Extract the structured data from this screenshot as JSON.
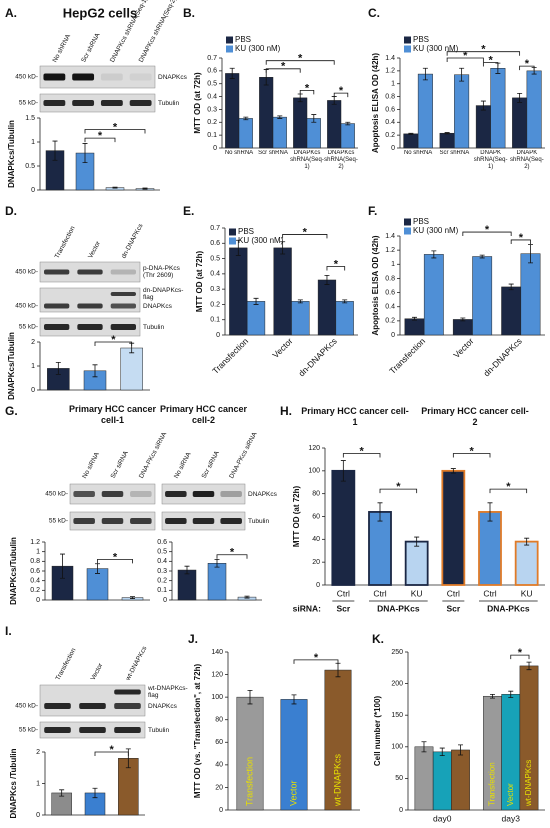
{
  "blots": [
    {
      "label": "A.",
      "title": "HepG2 cells",
      "lanes": [
        "No shRNA",
        "Scr shRNA",
        "DNAPKcs shRNA(Seq-1)",
        "DNAPKcs shRNA(Seq-2)"
      ],
      "rows": [
        {
          "marker": "450 kD-",
          "names": [
            "DNAPKcs"
          ]
        },
        {
          "marker": "55 kD-",
          "names": [
            "Tubulin"
          ]
        }
      ]
    },
    {
      "label": "D.",
      "lanes": [
        "Transfection",
        "Vector",
        "dn-DNAPKcs"
      ],
      "rows": [
        {
          "marker": "450 kD-",
          "names": [
            "p-DNA-PKcs (Thr 2609)"
          ]
        },
        {
          "marker": "450 kD-",
          "names": [
            "dn-DNAPKcs-flag",
            "DNAPKcs"
          ]
        },
        {
          "marker": "55 kD-",
          "names": [
            "Tubulin"
          ]
        }
      ]
    },
    {
      "label": "G.",
      "headings": [
        "Primary HCC cancer cell-1",
        "Primary HCC cancer cell-2"
      ],
      "lanes": [
        "No siRNA",
        "Scr siRNA",
        "DNA-PKcs siRNA",
        "No siRNA",
        "Scr siRNA",
        "DNA-PKcs siRNA"
      ],
      "rows": [
        {
          "marker": "450 kD-",
          "names": [
            "DNAPKcs"
          ]
        },
        {
          "marker": "55 kD-",
          "names": [
            "Tubulin"
          ]
        }
      ]
    },
    {
      "label": "I.",
      "lanes": [
        "Transfection",
        "Vector",
        "wt-DNAPKcs"
      ],
      "rows": [
        {
          "marker": "450 kD-",
          "names": [
            "wt-DNAPKcs-flag",
            "DNAPKcs"
          ]
        },
        {
          "marker": "55 kD-",
          "names": [
            "Tubulin"
          ]
        }
      ]
    }
  ],
  "chart_data": [
    {
      "type": "bar",
      "ylabel": "DNAPKcs/Tubulin",
      "values": [
        0.82,
        0.77,
        0.05,
        0.03
      ],
      "errors": [
        0.2,
        0.2,
        0.01,
        0.01
      ],
      "colors": [
        "#1b2744",
        "#4f8fd6",
        "#b8d4f0",
        "#b8d4f0"
      ],
      "ylim": [
        0,
        1.5
      ],
      "yticks": [
        0,
        0.5,
        1,
        1.5
      ],
      "annotations": [
        "*",
        "*"
      ]
    },
    {
      "type": "bar",
      "label": "B.",
      "ylabel": "MTT OD (at 72h)",
      "categories": [
        "No shRNA",
        "Scr shRNA",
        "DNAPKcs shRNA(Seq-1)",
        "DNAPKcs shRNA(Seq-2)"
      ],
      "series": [
        {
          "name": "PBS",
          "color": "#1b2744",
          "values": [
            0.58,
            0.55,
            0.39,
            0.37
          ],
          "errors": [
            0.04,
            0.06,
            0.03,
            0.03
          ]
        },
        {
          "name": "KU (300 nM)",
          "color": "#4f8fd6",
          "values": [
            0.23,
            0.24,
            0.23,
            0.19
          ],
          "errors": [
            0.01,
            0.01,
            0.03,
            0.01
          ]
        }
      ],
      "ylim": [
        0,
        0.7
      ],
      "yticks": [
        0,
        0.1,
        0.2,
        0.3,
        0.4,
        0.5,
        0.6,
        0.7
      ],
      "annotations": [
        "*",
        "*",
        "*",
        "*"
      ]
    },
    {
      "type": "bar",
      "label": "C.",
      "ylabel": "Apoptosis ELISA OD (42h)",
      "categories": [
        "No shRNA",
        "Scr shRNA",
        "DNAPK shRNA(Seq-1)",
        "DNAPK shRNA(Seq-2)"
      ],
      "series": [
        {
          "name": "PBS",
          "color": "#1b2744",
          "values": [
            0.22,
            0.23,
            0.66,
            0.78
          ],
          "errors": [
            0.01,
            0.01,
            0.07,
            0.07
          ]
        },
        {
          "name": "KU (300 nM)",
          "color": "#4f8fd6",
          "values": [
            1.15,
            1.14,
            1.24,
            1.2
          ],
          "errors": [
            0.09,
            0.1,
            0.08,
            0.05
          ]
        }
      ],
      "ylim": [
        0,
        1.4
      ],
      "yticks": [
        0,
        0.2,
        0.4,
        0.6,
        0.8,
        1,
        1.2,
        1.4
      ],
      "annotations": [
        "*",
        "*",
        "*",
        "*"
      ]
    },
    {
      "type": "bar",
      "ylabel": "DNAPKcs/Tubulin",
      "values": [
        0.9,
        0.8,
        1.75
      ],
      "errors": [
        0.25,
        0.25,
        0.2
      ],
      "colors": [
        "#1b2744",
        "#4f8fd6",
        "#c5dcf2"
      ],
      "ylim": [
        0,
        2
      ],
      "yticks": [
        0,
        1,
        2
      ],
      "annotations": [
        "*"
      ]
    },
    {
      "type": "bar",
      "label": "E.",
      "ylabel": "MTT OD (at 72h)",
      "categories": [
        "Transfection",
        "Vector",
        "dn-DNAPKcs"
      ],
      "series": [
        {
          "name": "PBS",
          "color": "#1b2744",
          "values": [
            0.57,
            0.57,
            0.36
          ],
          "errors": [
            0.05,
            0.04,
            0.03
          ]
        },
        {
          "name": "KU (300 nM)",
          "color": "#4f8fd6",
          "values": [
            0.22,
            0.22,
            0.22
          ],
          "errors": [
            0.02,
            0.01,
            0.01
          ]
        }
      ],
      "ylim": [
        0,
        0.7
      ],
      "yticks": [
        0,
        0.1,
        0.2,
        0.3,
        0.4,
        0.5,
        0.6,
        0.7
      ],
      "annotations": [
        "*",
        "*"
      ]
    },
    {
      "type": "bar",
      "label": "F.",
      "ylabel": "Apoptosis ELISA OD (42h)",
      "categories": [
        "Transfection",
        "Vector",
        "dn-DNAPKcs"
      ],
      "series": [
        {
          "name": "PBS",
          "color": "#1b2744",
          "values": [
            0.23,
            0.22,
            0.68
          ],
          "errors": [
            0.02,
            0.02,
            0.04
          ]
        },
        {
          "name": "KU (300 nM)",
          "color": "#4f8fd6",
          "values": [
            1.14,
            1.11,
            1.15
          ],
          "errors": [
            0.05,
            0.02,
            0.13
          ]
        }
      ],
      "ylim": [
        0,
        1.4
      ],
      "yticks": [
        0,
        0.2,
        0.4,
        0.6,
        0.8,
        1,
        1.2,
        1.4
      ],
      "annotations": [
        "*",
        "*"
      ]
    },
    {
      "type": "bar",
      "ylabel": "DNAPKcs/Tubulin",
      "values": [
        0.7,
        0.65,
        0.05
      ],
      "errors": [
        0.25,
        0.1,
        0.02
      ],
      "colors": [
        "#1b2744",
        "#4f8fd6",
        "#b8d4f0"
      ],
      "ylim": [
        0,
        1.2
      ],
      "yticks": [
        0,
        0.2,
        0.4,
        0.6,
        0.8,
        1,
        1.2
      ],
      "annotations": [
        "*"
      ]
    },
    {
      "type": "bar",
      "values": [
        0.31,
        0.38,
        0.03
      ],
      "errors": [
        0.04,
        0.04,
        0.01
      ],
      "colors": [
        "#1b2744",
        "#4f8fd6",
        "#b8d4f0"
      ],
      "ylim": [
        0,
        0.6
      ],
      "yticks": [
        0,
        0.1,
        0.2,
        0.3,
        0.4,
        0.5,
        0.6
      ],
      "annotations": [
        "*"
      ]
    },
    {
      "type": "bar",
      "label": "H.",
      "subtitles": [
        "Primary HCC cancer cell-1",
        "Primary HCC cancer cell-2"
      ],
      "ylabel": "MTT OD (at 72h)",
      "categories": [
        "Ctrl",
        "Ctrl",
        "KU",
        "Ctrl",
        "Ctrl",
        "KU"
      ],
      "values": [
        100,
        64,
        38,
        100,
        64,
        38
      ],
      "errors": [
        9,
        8,
        4,
        2,
        8,
        3
      ],
      "colors": [
        "#1b2744",
        "#4f8fd6",
        "#b8d4f0",
        "#1b2744",
        "#4f8fd6",
        "#b8d4f0"
      ],
      "edge_colors": [
        "#1b2744",
        "#1b2744",
        "#1b2744",
        "#e07b28",
        "#e07b28",
        "#e07b28"
      ],
      "group_title": "siRNA:",
      "group_labels": [
        "Scr",
        "DNA-PKcs",
        "Scr",
        "DNA-PKcs"
      ],
      "ylim": [
        0,
        120
      ],
      "yticks": [
        0,
        20,
        40,
        60,
        80,
        100,
        120
      ],
      "annotations": [
        "*",
        "*",
        "*",
        "*"
      ]
    },
    {
      "type": "bar",
      "ylabel": "DNAPKcs /Tubulin",
      "values": [
        0.7,
        0.7,
        1.8
      ],
      "errors": [
        0.1,
        0.15,
        0.3
      ],
      "colors": [
        "#8c8c8c",
        "#3a7fd0",
        "#8a5a2b"
      ],
      "ylim": [
        0,
        2
      ],
      "yticks": [
        0,
        1,
        2
      ],
      "annotations": [
        "*"
      ]
    },
    {
      "type": "bar",
      "label": "J.",
      "ylabel": "MTT OD (vs. \"Transfection\", at 72h)",
      "categories": [
        "Transfection",
        "Vector",
        "wt-DNAPKcs"
      ],
      "values": [
        100,
        98,
        124
      ],
      "errors": [
        6,
        4,
        6
      ],
      "colors": [
        "#9a9a9a",
        "#3a7fd0",
        "#8a5a2b"
      ],
      "ylim": [
        0,
        140
      ],
      "yticks": [
        0,
        20,
        40,
        60,
        80,
        100,
        120,
        140
      ],
      "annotations": [
        "*"
      ]
    },
    {
      "type": "bar",
      "label": "K.",
      "ylabel": "Cell number (*100)",
      "categories": [
        "day0",
        "day3"
      ],
      "series": [
        {
          "name": "Transfection",
          "color": "#9a9a9a",
          "values": [
            100,
            180
          ],
          "errors": [
            8,
            3
          ]
        },
        {
          "name": "Vector",
          "color": "#17a2b8",
          "values": [
            92,
            183
          ],
          "errors": [
            6,
            5
          ]
        },
        {
          "name": "wt-DNAPKcs",
          "color": "#8a5a2b",
          "values": [
            95,
            228
          ],
          "errors": [
            8,
            6
          ]
        }
      ],
      "ylim": [
        0,
        250
      ],
      "yticks": [
        0,
        50,
        100,
        150,
        200,
        250
      ],
      "annotations": [
        "*"
      ]
    }
  ]
}
